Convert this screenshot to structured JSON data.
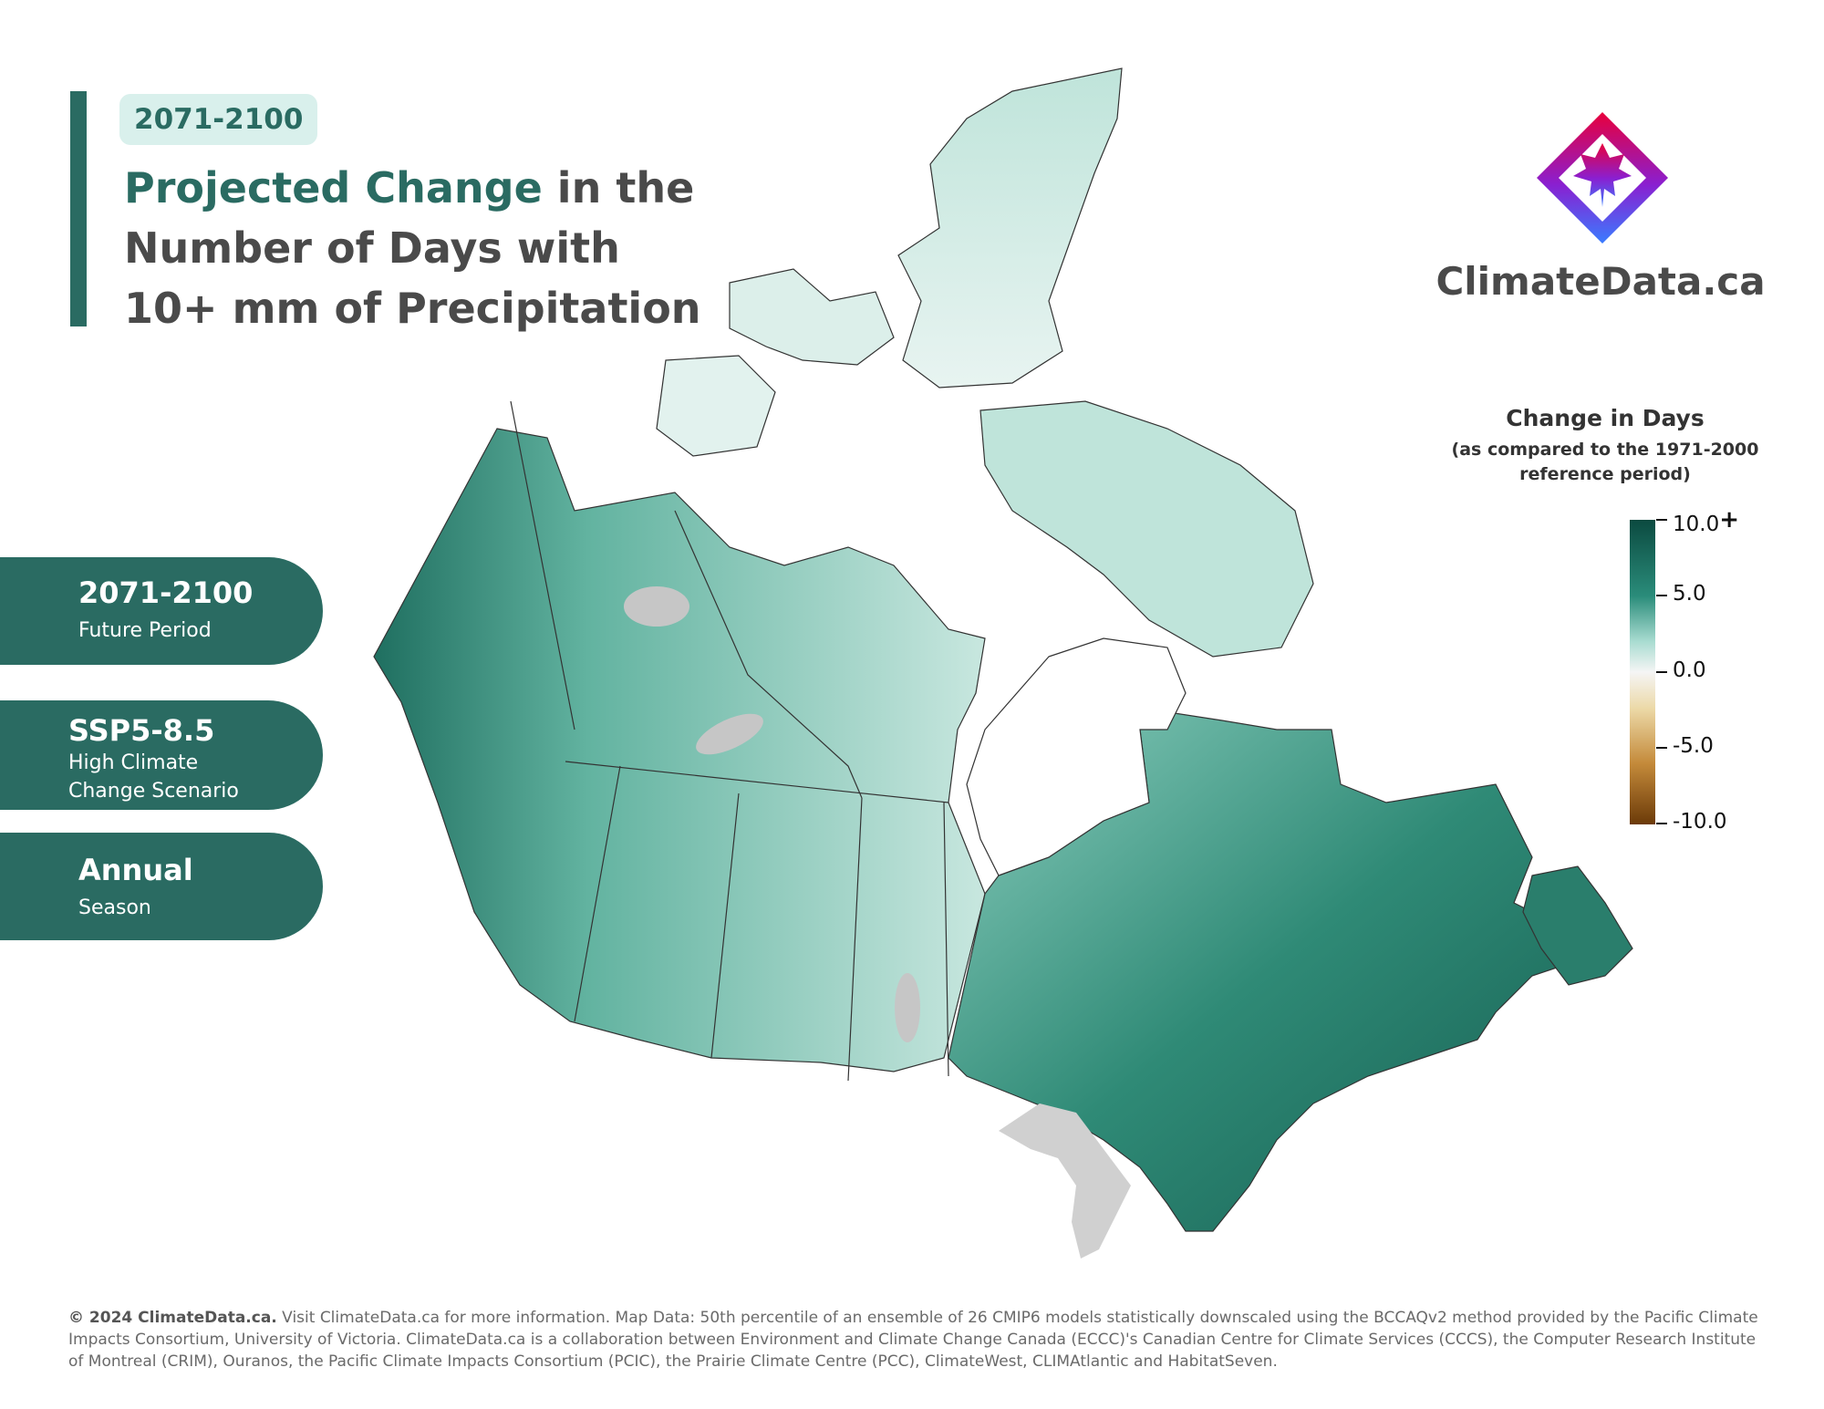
{
  "header": {
    "period_chip": "2071-2100",
    "title_highlight": "Projected Change",
    "title_rest": " in the Number of Days with 10+ mm of Precipitation"
  },
  "brand": {
    "name": "ClimateData.ca",
    "colors": [
      "#e8003c",
      "#8a1fd0",
      "#3a7cff"
    ]
  },
  "legend": {
    "title": "Change in Days",
    "subtitle": "(as compared to the 1971-2000 reference period)",
    "ticks": [
      "10.0",
      "5.0",
      "0.0",
      "-5.0",
      "-10.0"
    ],
    "top_suffix": "+"
  },
  "info_pills": [
    {
      "main": "2071-2100",
      "sub": "Future Period"
    },
    {
      "main": "SSP5-8.5",
      "sub": "High Climate Change Scenario"
    },
    {
      "main": "Annual",
      "sub": "Season"
    }
  ],
  "footer": {
    "copyright": "© 2024 ClimateData.ca.",
    "text": " Visit ClimateData.ca for more information. Map Data: 50th percentile of an ensemble of 26 CMIP6 models statistically downscaled using the BCCAQv2 method provided by the Pacific Climate Impacts Consortium, University of Victoria. ClimateData.ca is a collaboration between Environment and Climate Change Canada (ECCC)'s Canadian Centre for Climate Services (CCCS), the Computer Research Institute of Montreal (CRIM), Ouranos, the Pacific Climate Impacts Consortium (PCIC), the Prairie Climate Centre (PCC), ClimateWest, CLIMAtlantic and HabitatSeven."
  }
}
